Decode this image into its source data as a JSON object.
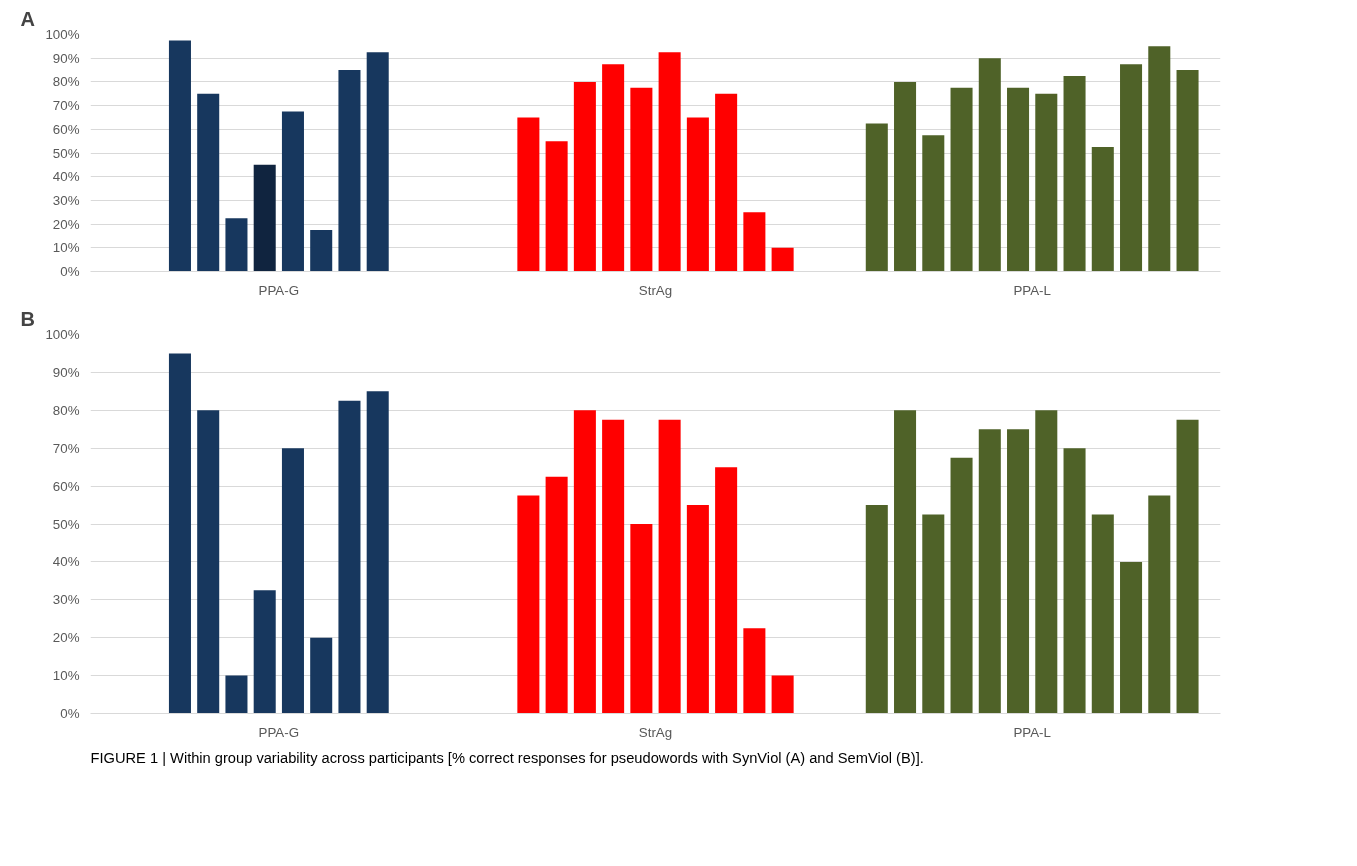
{
  "chart_data": [
    {
      "type": "bar",
      "title": "A",
      "categories": [
        "PPA-G",
        "StrAg",
        "PPA-L"
      ],
      "series": [
        {
          "values": [
            97.5,
            65,
            62.5
          ],
          "colors": [
            "#17375e",
            "#ff0000",
            "#4f6228"
          ]
        },
        {
          "values": [
            75,
            55,
            80
          ],
          "colors": [
            "#17375e",
            "#ff0000",
            "#4f6228"
          ]
        },
        {
          "values": [
            22.5,
            80,
            57.5
          ],
          "colors": [
            "#17375e",
            "#ff0000",
            "#4f6228"
          ]
        },
        {
          "values": [
            45,
            87.5,
            77.5
          ],
          "colors": [
            "#10243f",
            "#ff0000",
            "#4f6228"
          ]
        },
        {
          "values": [
            67.5,
            77.5,
            90
          ],
          "colors": [
            "#17375e",
            "#ff0000",
            "#4f6228"
          ]
        },
        {
          "values": [
            17.5,
            92.5,
            77.5
          ],
          "colors": [
            "#17375e",
            "#ff0000",
            "#4f6228"
          ]
        },
        {
          "values": [
            85,
            65,
            75
          ],
          "colors": [
            "#17375e",
            "#ff0000",
            "#4f6228"
          ]
        },
        {
          "values": [
            92.5,
            75,
            82.5
          ],
          "colors": [
            "#17375e",
            "#ff0000",
            "#4f6228"
          ]
        },
        {
          "values": [
            null,
            25,
            52.5
          ],
          "colors": [
            "#17375e",
            "#ff0000",
            "#4f6228"
          ]
        },
        {
          "values": [
            null,
            10,
            87.5
          ],
          "colors": [
            "#17375e",
            "#ff0000",
            "#4f6228"
          ]
        },
        {
          "values": [
            null,
            null,
            95
          ],
          "colors": [
            "#17375e",
            "#ff0000",
            "#4f6228"
          ]
        },
        {
          "values": [
            null,
            null,
            85
          ],
          "colors": [
            "#17375e",
            "#ff0000",
            "#4f6228"
          ]
        }
      ],
      "ylim": [
        0,
        100
      ],
      "yticks": [
        {
          "value": 0,
          "label": "0%"
        },
        {
          "value": 10,
          "label": "10%"
        },
        {
          "value": 20,
          "label": "20%"
        },
        {
          "value": 30,
          "label": "30%"
        },
        {
          "value": 40,
          "label": "40%"
        },
        {
          "value": 50,
          "label": "50%"
        },
        {
          "value": 60,
          "label": "60%"
        },
        {
          "value": 70,
          "label": "70%"
        },
        {
          "value": 80,
          "label": "80%"
        },
        {
          "value": 90,
          "label": "90%"
        },
        {
          "value": 100,
          "label": "100%"
        }
      ],
      "grid": "y"
    },
    {
      "type": "bar",
      "title": "B",
      "categories": [
        "PPA-G",
        "StrAg",
        "PPA-L"
      ],
      "series": [
        {
          "values": [
            95,
            57.5,
            55
          ],
          "colors": [
            "#17375e",
            "#ff0000",
            "#4f6228"
          ]
        },
        {
          "values": [
            80,
            62.5,
            80
          ],
          "colors": [
            "#17375e",
            "#ff0000",
            "#4f6228"
          ]
        },
        {
          "values": [
            10,
            80,
            52.5
          ],
          "colors": [
            "#17375e",
            "#ff0000",
            "#4f6228"
          ]
        },
        {
          "values": [
            32.5,
            77.5,
            67.5
          ],
          "colors": [
            "#17375e",
            "#ff0000",
            "#4f6228"
          ]
        },
        {
          "values": [
            70,
            50,
            75
          ],
          "colors": [
            "#17375e",
            "#ff0000",
            "#4f6228"
          ]
        },
        {
          "values": [
            20,
            77.5,
            75
          ],
          "colors": [
            "#17375e",
            "#ff0000",
            "#4f6228"
          ]
        },
        {
          "values": [
            82.5,
            55,
            80
          ],
          "colors": [
            "#17375e",
            "#ff0000",
            "#4f6228"
          ]
        },
        {
          "values": [
            85,
            65,
            70
          ],
          "colors": [
            "#17375e",
            "#ff0000",
            "#4f6228"
          ]
        },
        {
          "values": [
            null,
            22.5,
            52.5
          ],
          "colors": [
            "#17375e",
            "#ff0000",
            "#4f6228"
          ]
        },
        {
          "values": [
            null,
            10,
            40
          ],
          "colors": [
            "#17375e",
            "#ff0000",
            "#4f6228"
          ]
        },
        {
          "values": [
            null,
            null,
            57.5
          ],
          "colors": [
            "#17375e",
            "#ff0000",
            "#4f6228"
          ]
        },
        {
          "values": [
            null,
            null,
            77.5
          ],
          "colors": [
            "#17375e",
            "#ff0000",
            "#4f6228"
          ]
        }
      ],
      "ylim": [
        0,
        100
      ],
      "yticks": [
        {
          "value": 0,
          "label": "0%"
        },
        {
          "value": 10,
          "label": "10%"
        },
        {
          "value": 20,
          "label": "20%"
        },
        {
          "value": 30,
          "label": "30%"
        },
        {
          "value": 40,
          "label": "40%"
        },
        {
          "value": 50,
          "label": "50%"
        },
        {
          "value": 60,
          "label": "60%"
        },
        {
          "value": 70,
          "label": "70%"
        },
        {
          "value": 80,
          "label": "80%"
        },
        {
          "value": 90,
          "label": "90%"
        },
        {
          "value": 100,
          "label": "100%"
        }
      ],
      "grid": "y",
      "annotations": [
        "FIGURE 1 | Within group variability across participants [% correct responses for pseudowords with SynViol (A) and SemViol (B)]."
      ]
    }
  ]
}
